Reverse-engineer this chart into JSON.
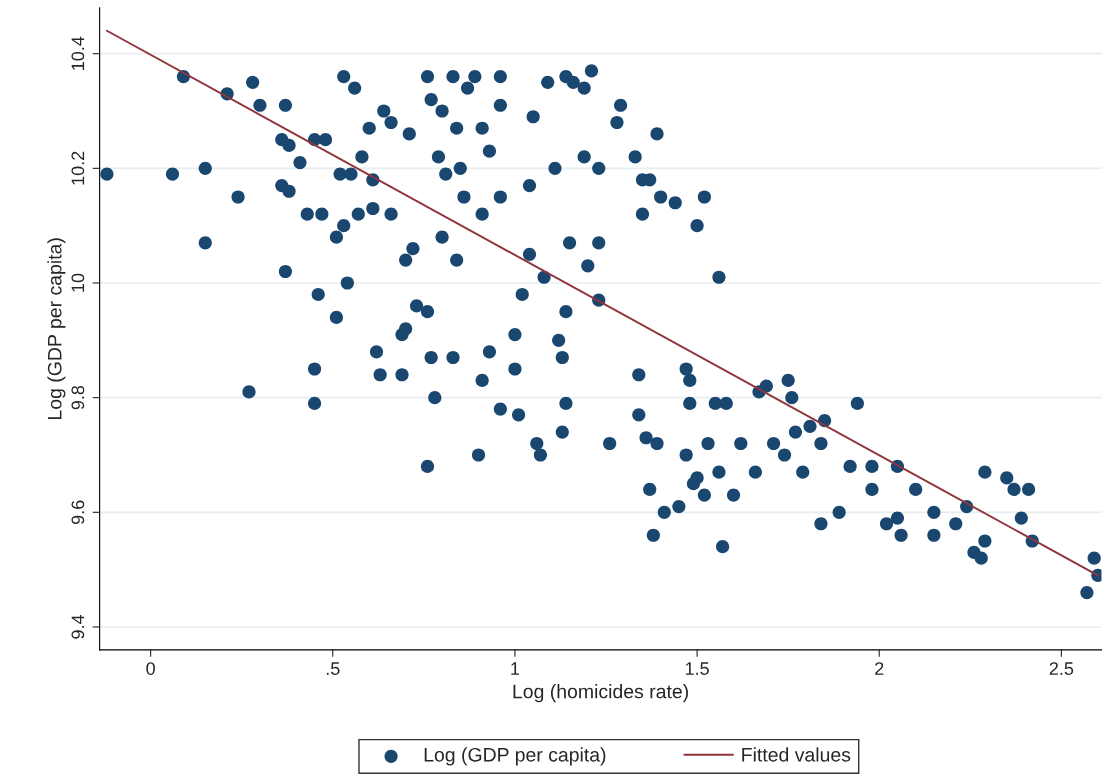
{
  "chart_data": {
    "type": "scatter",
    "xlabel": "Log (homicides rate)",
    "ylabel": "Log (GDP per capita)",
    "xlim": [
      -0.14,
      2.61
    ],
    "ylim": [
      9.36,
      10.48
    ],
    "xticks": [
      0,
      {
        "value": 0.5,
        "label": ".5"
      },
      1,
      {
        "value": 1.5,
        "label": "1.5"
      },
      2,
      {
        "value": 2.5,
        "label": "2.5"
      }
    ],
    "yticks": [
      9.4,
      9.6,
      9.8,
      {
        "value": 10,
        "label": "10"
      },
      10.2,
      10.4
    ],
    "grid": "y",
    "legend": "bottom",
    "series": [
      {
        "name": "Log (GDP per capita)",
        "marker": "circle",
        "color": "#1a476f",
        "x": [
          -0.12,
          0.06,
          0.15,
          0.15,
          0.09,
          0.21,
          0.28,
          0.3,
          0.37,
          0.24,
          0.27,
          0.36,
          0.38,
          0.36,
          0.38,
          0.37,
          0.41,
          0.43,
          0.45,
          0.48,
          0.47,
          0.46,
          0.45,
          0.45,
          0.51,
          0.53,
          0.51,
          0.53,
          0.56,
          0.52,
          0.55,
          0.54,
          0.57,
          0.58,
          0.61,
          0.6,
          0.61,
          0.63,
          0.62,
          0.64,
          0.66,
          0.66,
          0.69,
          0.7,
          0.69,
          0.7,
          0.71,
          0.73,
          0.72,
          0.76,
          0.77,
          0.76,
          0.77,
          0.76,
          0.78,
          0.79,
          0.81,
          0.8,
          0.8,
          0.83,
          0.84,
          0.85,
          0.84,
          0.83,
          0.87,
          0.86,
          0.89,
          0.91,
          0.93,
          0.91,
          0.9,
          0.93,
          0.91,
          0.96,
          0.96,
          0.96,
          0.96,
          1.0,
          1.0,
          1.01,
          1.02,
          1.04,
          1.04,
          1.05,
          1.08,
          1.06,
          1.07,
          1.11,
          1.09,
          1.12,
          1.13,
          1.14,
          1.16,
          1.19,
          1.21,
          1.15,
          1.14,
          1.14,
          1.13,
          1.19,
          1.23,
          1.23,
          1.2,
          1.23,
          1.26,
          1.28,
          1.29,
          1.33,
          1.35,
          1.35,
          1.39,
          1.37,
          1.4,
          1.44,
          1.5,
          1.52,
          1.56,
          1.34,
          1.34,
          1.36,
          1.39,
          1.37,
          1.38,
          1.41,
          1.45,
          1.47,
          1.48,
          1.48,
          1.47,
          1.49,
          1.5,
          1.52,
          1.53,
          1.55,
          1.57,
          1.58,
          1.56,
          1.6,
          1.62,
          1.66,
          1.67,
          1.69,
          1.71,
          1.74,
          1.75,
          1.76,
          1.77,
          1.79,
          1.81,
          1.84,
          1.85,
          1.84,
          1.89,
          1.92,
          1.94,
          1.98,
          1.98,
          2.02,
          2.05,
          2.06,
          2.05,
          2.1,
          2.15,
          2.15,
          2.21,
          2.24,
          2.26,
          2.28,
          2.29,
          2.29,
          2.35,
          2.37,
          2.41,
          2.39,
          2.42,
          2.57,
          2.59,
          2.6
        ],
        "values": [
          10.19,
          10.19,
          10.2,
          10.07,
          10.36,
          10.33,
          10.35,
          10.31,
          10.31,
          10.15,
          9.81,
          10.25,
          10.24,
          10.17,
          10.16,
          10.02,
          10.21,
          10.12,
          10.25,
          10.25,
          10.12,
          9.98,
          9.85,
          9.79,
          10.08,
          10.1,
          9.94,
          10.36,
          10.34,
          10.19,
          10.19,
          10.0,
          10.12,
          10.22,
          10.18,
          10.27,
          10.13,
          9.84,
          9.88,
          10.3,
          10.28,
          10.12,
          9.91,
          9.92,
          9.84,
          10.04,
          10.26,
          9.96,
          10.06,
          10.36,
          10.32,
          9.95,
          9.87,
          9.68,
          9.8,
          10.22,
          10.19,
          10.3,
          10.08,
          10.36,
          10.27,
          10.2,
          10.04,
          9.87,
          10.34,
          10.15,
          10.36,
          10.27,
          10.23,
          10.12,
          9.7,
          9.88,
          9.83,
          10.36,
          10.31,
          10.15,
          9.78,
          9.91,
          9.85,
          9.77,
          9.98,
          10.05,
          10.17,
          10.29,
          10.01,
          9.72,
          9.7,
          10.2,
          10.35,
          9.9,
          9.87,
          10.36,
          10.35,
          10.34,
          10.37,
          10.07,
          9.95,
          9.79,
          9.74,
          10.22,
          10.07,
          10.2,
          10.03,
          9.97,
          9.72,
          10.28,
          10.31,
          10.22,
          10.18,
          10.12,
          10.26,
          10.18,
          10.15,
          10.14,
          10.1,
          10.15,
          10.01,
          9.77,
          9.84,
          9.73,
          9.72,
          9.64,
          9.56,
          9.6,
          9.61,
          9.85,
          9.83,
          9.79,
          9.7,
          9.65,
          9.66,
          9.63,
          9.72,
          9.79,
          9.54,
          9.79,
          9.67,
          9.63,
          9.72,
          9.67,
          9.81,
          9.82,
          9.72,
          9.7,
          9.83,
          9.8,
          9.74,
          9.67,
          9.75,
          9.72,
          9.76,
          9.58,
          9.6,
          9.68,
          9.79,
          9.68,
          9.64,
          9.58,
          9.59,
          9.56,
          9.68,
          9.64,
          9.6,
          9.56,
          9.58,
          9.61,
          9.53,
          9.52,
          9.67,
          9.55,
          9.66,
          9.64,
          9.64,
          9.59,
          9.55,
          9.46,
          9.52,
          9.49
        ]
      },
      {
        "name": "Fitted values",
        "type": "line",
        "color": "#90353b",
        "x": [
          -0.12,
          2.6
        ],
        "values": [
          10.44,
          9.49
        ]
      }
    ]
  }
}
